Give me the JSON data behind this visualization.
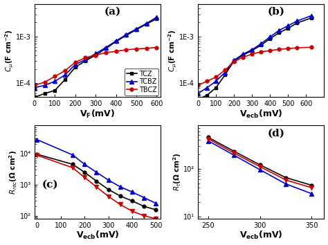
{
  "panel_a": {
    "label": "(a)",
    "xlabel": "V_F(mV)",
    "ylabel": "Cμ(F cm⁻²)",
    "xlim": [
      0,
      620
    ],
    "ylim": [
      5e-05,
      0.005
    ],
    "xticks": [
      0,
      100,
      200,
      300,
      400,
      500,
      600
    ],
    "TCZ_x": [
      0,
      50,
      100,
      150,
      200,
      250,
      300,
      350,
      400,
      450,
      500,
      550,
      600
    ],
    "TCZ_y": [
      5e-05,
      6e-05,
      7e-05,
      0.00012,
      0.00022,
      0.0003,
      0.0004,
      0.00055,
      0.00078,
      0.00105,
      0.0014,
      0.00185,
      0.0024
    ],
    "TCBZ_x": [
      0,
      50,
      100,
      150,
      200,
      250,
      300,
      350,
      400,
      450,
      500,
      550,
      600
    ],
    "TCBZ_y": [
      8e-05,
      9e-05,
      0.00011,
      0.00015,
      0.00025,
      0.00032,
      0.00043,
      0.00058,
      0.0008,
      0.0011,
      0.00145,
      0.0019,
      0.0026
    ],
    "TBCZ_x": [
      0,
      50,
      100,
      150,
      200,
      250,
      300,
      350,
      400,
      450,
      500,
      550,
      600
    ],
    "TBCZ_y": [
      9e-05,
      0.000105,
      0.00014,
      0.000185,
      0.00028,
      0.00035,
      0.0004,
      0.00045,
      0.00048,
      0.00052,
      0.00054,
      0.00056,
      0.00058
    ]
  },
  "panel_b": {
    "label": "(b)",
    "xlabel": "V_ecb(mV)",
    "ylabel": "Cμ(F cm⁻²)",
    "xlim": [
      0,
      700
    ],
    "ylim": [
      5e-05,
      0.005
    ],
    "xticks": [
      0,
      100,
      200,
      300,
      400,
      500,
      600
    ],
    "TCZ_x": [
      0,
      50,
      100,
      150,
      200,
      250,
      300,
      350,
      400,
      450,
      500,
      550,
      630
    ],
    "TCZ_y": [
      4.5e-05,
      5.5e-05,
      8e-05,
      0.00015,
      0.0003,
      0.0004,
      0.0005,
      0.00065,
      0.0009,
      0.0012,
      0.0015,
      0.00195,
      0.0025
    ],
    "TCBZ_x": [
      0,
      50,
      100,
      150,
      200,
      250,
      300,
      350,
      400,
      450,
      500,
      550,
      630
    ],
    "TCBZ_y": [
      6e-05,
      8e-05,
      0.00011,
      0.00017,
      0.00031,
      0.00042,
      0.00052,
      0.0007,
      0.00098,
      0.00135,
      0.0017,
      0.00215,
      0.0028
    ],
    "TBCZ_x": [
      0,
      50,
      100,
      150,
      200,
      250,
      300,
      350,
      400,
      450,
      500,
      550,
      630
    ],
    "TBCZ_y": [
      9e-05,
      0.00011,
      0.000135,
      0.00019,
      0.00029,
      0.00036,
      0.00042,
      0.00047,
      0.0005,
      0.00053,
      0.00055,
      0.00057,
      0.00059
    ]
  },
  "panel_c": {
    "label": "(c)",
    "xlabel": "V_ecb(mV)",
    "ylabel": "R_rec(Ω cm²)",
    "xlim": [
      -10,
      520
    ],
    "ylim": [
      80,
      80000.0
    ],
    "xticks": [
      0,
      100,
      200,
      300,
      400,
      500
    ],
    "TCZ_x": [
      0,
      150,
      200,
      250,
      300,
      350,
      400,
      450,
      500
    ],
    "TCZ_y": [
      9500,
      4500,
      2500,
      1300,
      700,
      430,
      300,
      200,
      155
    ],
    "TCBZ_x": [
      0,
      150,
      200,
      250,
      300,
      350,
      400,
      450,
      500
    ],
    "TCBZ_y": [
      28000.0,
      9000,
      4500,
      2500,
      1400,
      850,
      580,
      380,
      250
    ],
    "TBCZ_x": [
      0,
      150,
      200,
      250,
      300,
      350,
      400,
      450,
      500
    ],
    "TBCZ_y": [
      8800,
      3500,
      1700,
      850,
      420,
      230,
      140,
      100,
      80
    ]
  },
  "panel_d": {
    "label": "(d)",
    "xlabel": "V_ecb(mV)",
    "ylabel": "R_t(Ω cm²)",
    "xlim": [
      240,
      362
    ],
    "ylim": [
      9,
      800
    ],
    "xticks": [
      250,
      300,
      350
    ],
    "TCZ_x": [
      250,
      275,
      300,
      325,
      350
    ],
    "TCZ_y": [
      450,
      230,
      120,
      65,
      45
    ],
    "TCBZ_x": [
      250,
      275,
      300,
      325,
      350
    ],
    "TCBZ_y": [
      380,
      190,
      95,
      48,
      30
    ],
    "TBCZ_x": [
      250,
      275,
      300,
      325,
      350
    ],
    "TBCZ_y": [
      420,
      210,
      110,
      58,
      40
    ]
  },
  "colors": {
    "TCZ": "#000000",
    "TCBZ": "#0000cc",
    "TBCZ": "#cc0000"
  }
}
